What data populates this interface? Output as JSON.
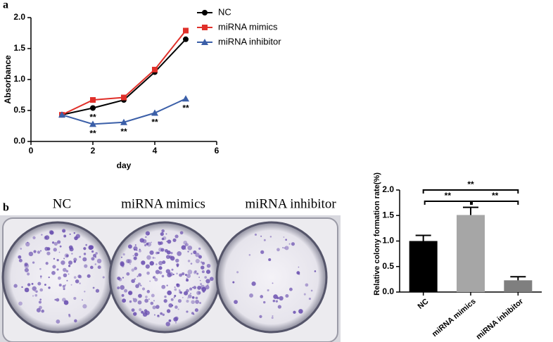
{
  "panel_labels": [
    "a",
    "b"
  ],
  "photo_labels": [
    "NC",
    "miRNA mimics",
    "miRNA inhibitor"
  ],
  "chart_data": [
    {
      "type": "line",
      "xlabel": "day",
      "ylabel": "Absorbance",
      "x": [
        1,
        2,
        3,
        4,
        5
      ],
      "series": [
        {
          "name": "NC",
          "color": "#000000",
          "marker": "circle",
          "values": [
            0.43,
            0.54,
            0.67,
            1.12,
            1.65
          ],
          "point_labels": [
            null,
            "**",
            null,
            null,
            null
          ]
        },
        {
          "name": "miRNA mimics",
          "color": "#e0302a",
          "marker": "square",
          "values": [
            0.43,
            0.67,
            0.71,
            1.16,
            1.79
          ],
          "point_labels": [
            null,
            null,
            null,
            null,
            null
          ]
        },
        {
          "name": "miRNA inhibitor",
          "color": "#3b5fa8",
          "marker": "triangle",
          "values": [
            0.43,
            0.28,
            0.31,
            0.46,
            0.69
          ],
          "point_labels": [
            null,
            "**",
            "**",
            "**",
            "**"
          ]
        }
      ],
      "xlim": [
        0,
        6
      ],
      "xticks": [
        0,
        2,
        4,
        6
      ],
      "ylim": [
        0,
        2
      ],
      "yticks": [
        {
          "value": 0,
          "label": "0.0"
        },
        {
          "value": 0.5,
          "label": "0.5"
        },
        {
          "value": 1,
          "label": "1.0"
        },
        {
          "value": 1.5,
          "label": "1.5"
        },
        {
          "value": 2,
          "label": "2.0"
        }
      ],
      "legend": "upper right"
    },
    {
      "type": "bar",
      "ylabel": "Relative colony formation rate(%)",
      "categories": [
        "NC",
        "miRNA mimics",
        "miRNA inhibitor"
      ],
      "values": [
        1.0,
        1.51,
        0.23
      ],
      "errors": [
        0.11,
        0.15,
        0.07
      ],
      "colors": [
        "#000000",
        "#a6a6a6",
        "#7f7f7f"
      ],
      "ylim": [
        0,
        2
      ],
      "yticks": [
        {
          "value": 0,
          "label": "0.0"
        },
        {
          "value": 0.5,
          "label": "0.5"
        },
        {
          "value": 1,
          "label": "1.0"
        },
        {
          "value": 1.5,
          "label": "1.5"
        },
        {
          "value": 2,
          "label": "2.0"
        }
      ],
      "comparisons": [
        {
          "pair": [
            "NC",
            "miRNA inhibitor"
          ],
          "label": "**"
        },
        {
          "pair": [
            "NC",
            "miRNA mimics"
          ],
          "label": "**"
        },
        {
          "pair": [
            "miRNA mimics",
            "miRNA inhibitor"
          ],
          "label": "**"
        }
      ]
    }
  ]
}
